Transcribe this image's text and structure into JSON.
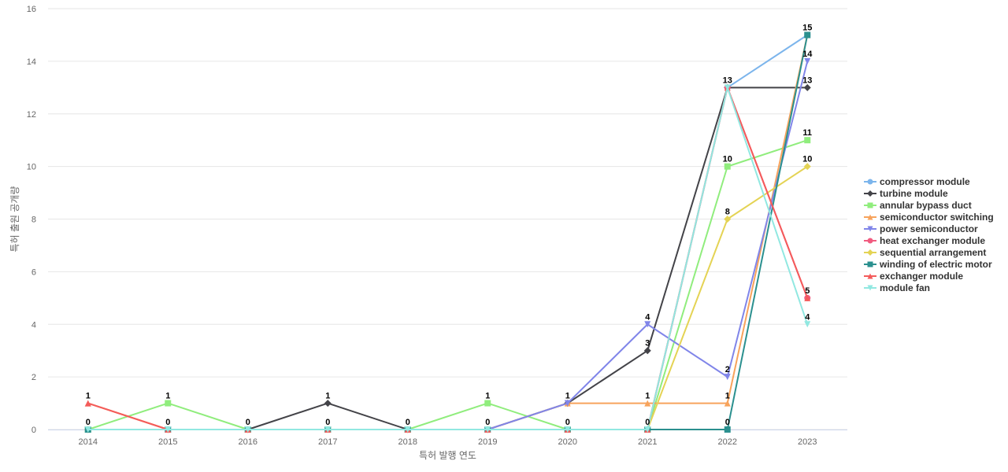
{
  "chart_data": {
    "type": "line",
    "title": "",
    "xlabel": "특허 발행 연도",
    "ylabel": "특허 출원 공개량",
    "ylim": [
      0,
      16
    ],
    "yticks": [
      0,
      2,
      4,
      6,
      8,
      10,
      12,
      14,
      16
    ],
    "grid": true,
    "legend_position": "right",
    "x": [
      "2014",
      "2015",
      "2016",
      "2017",
      "2018",
      "2019",
      "2020",
      "2021",
      "2022",
      "2023"
    ],
    "series": [
      {
        "name": "compressor module",
        "color": "#7cb5ec",
        "marker": "circle",
        "values": [
          0,
          0,
          0,
          0,
          0,
          0,
          0,
          0,
          13,
          15
        ]
      },
      {
        "name": "turbine module",
        "color": "#434348",
        "marker": "diamond",
        "values": [
          0,
          0,
          0,
          1,
          0,
          0,
          1,
          3,
          13,
          13
        ]
      },
      {
        "name": "annular bypass duct",
        "color": "#90ed7d",
        "marker": "square",
        "values": [
          0,
          1,
          0,
          0,
          0,
          1,
          0,
          0,
          10,
          11
        ]
      },
      {
        "name": "semiconductor switching",
        "color": "#f7a35c",
        "marker": "triangle",
        "values": [
          1,
          0,
          0,
          0,
          0,
          0,
          1,
          1,
          1,
          15
        ]
      },
      {
        "name": "power semiconductor",
        "color": "#8085e9",
        "marker": "triangle-down",
        "values": [
          0,
          0,
          0,
          0,
          0,
          0,
          1,
          4,
          2,
          14
        ]
      },
      {
        "name": "heat exchanger module",
        "color": "#f15c80",
        "marker": "circle",
        "values": [
          0,
          0,
          0,
          0,
          0,
          0,
          0,
          0,
          13,
          5
        ]
      },
      {
        "name": "sequential arrangement",
        "color": "#e4d354",
        "marker": "diamond",
        "values": [
          0,
          0,
          0,
          0,
          0,
          0,
          0,
          0,
          8,
          10
        ]
      },
      {
        "name": "winding of electric motor",
        "color": "#2b908f",
        "marker": "square",
        "values": [
          0,
          0,
          0,
          0,
          0,
          0,
          0,
          0,
          0,
          15
        ]
      },
      {
        "name": "exchanger module",
        "color": "#f45b5b",
        "marker": "triangle",
        "values": [
          1,
          0,
          0,
          0,
          0,
          0,
          0,
          0,
          13,
          5
        ]
      },
      {
        "name": "module fan",
        "color": "#91e8e1",
        "marker": "triangle-down",
        "values": [
          0,
          0,
          0,
          0,
          0,
          0,
          0,
          0,
          13,
          4
        ]
      }
    ],
    "data_labels": [
      {
        "x": "2014",
        "values": [
          "1",
          "0"
        ]
      },
      {
        "x": "2015",
        "values": [
          "1",
          "0"
        ]
      },
      {
        "x": "2016",
        "values": [
          "0"
        ]
      },
      {
        "x": "2017",
        "values": [
          "1",
          "0"
        ]
      },
      {
        "x": "2018",
        "values": [
          "0"
        ]
      },
      {
        "x": "2019",
        "values": [
          "1",
          "0"
        ]
      },
      {
        "x": "2020",
        "values": [
          "1",
          "0"
        ]
      },
      {
        "x": "2021",
        "values": [
          "4",
          "3",
          "1",
          "0"
        ]
      },
      {
        "x": "2022",
        "values": [
          "13",
          "10",
          "8",
          "2",
          "1",
          "0"
        ]
      },
      {
        "x": "2023",
        "values": [
          "15",
          "14",
          "13",
          "11",
          "10",
          "5",
          "4"
        ]
      }
    ]
  }
}
